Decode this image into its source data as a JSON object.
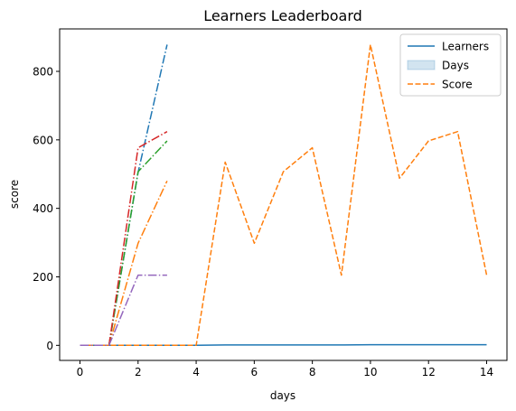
{
  "chart_data": {
    "type": "line",
    "title": "Learners Leaderboard",
    "xlabel": "days",
    "ylabel": "score",
    "xlim": [
      -0.7,
      14.7
    ],
    "ylim": [
      -44,
      924
    ],
    "xticks": [
      0,
      2,
      4,
      6,
      8,
      10,
      12,
      14
    ],
    "yticks": [
      0,
      200,
      400,
      600,
      800
    ],
    "grid": false,
    "legend": {
      "position": "top-right",
      "entries": [
        {
          "label": "Learners",
          "kind": "line",
          "color": "#1f77b4"
        },
        {
          "label": "Days",
          "kind": "patch",
          "color": "#1f77b4"
        },
        {
          "label": "Score",
          "kind": "dashed",
          "color": "#ff7f0e"
        }
      ]
    },
    "series": [
      {
        "name": "Learners",
        "color": "#1f77b4",
        "style": "solid",
        "x": [
          0,
          1,
          2,
          3,
          4,
          5,
          6,
          7,
          8,
          9,
          10,
          11,
          12,
          13,
          14
        ],
        "y": [
          0,
          0,
          0,
          0,
          0,
          1,
          1,
          1,
          1,
          1,
          2,
          2,
          2,
          2,
          2
        ]
      },
      {
        "name": "Score",
        "color": "#ff7f0e",
        "style": "dashed",
        "x": [
          0,
          1,
          2,
          3,
          4,
          5,
          6,
          7,
          8,
          9,
          10,
          11,
          12,
          13,
          14
        ],
        "y": [
          0,
          0,
          0,
          0,
          0,
          535,
          298,
          507,
          577,
          205,
          878,
          488,
          597,
          624,
          205
        ]
      },
      {
        "color": "#1f77b4",
        "style": "dashdot",
        "x": [
          0,
          1,
          2,
          3
        ],
        "y": [
          0,
          0,
          505,
          878
        ]
      },
      {
        "color": "#ff7f0e",
        "style": "dashdot",
        "x": [
          0,
          1,
          2,
          3
        ],
        "y": [
          0,
          0,
          298,
          480
        ]
      },
      {
        "color": "#2ca02c",
        "style": "dashdot",
        "x": [
          0,
          1,
          2,
          3
        ],
        "y": [
          0,
          0,
          507,
          597
        ]
      },
      {
        "color": "#d62728",
        "style": "dashdot",
        "x": [
          0,
          1,
          2,
          3
        ],
        "y": [
          0,
          0,
          577,
          624
        ]
      },
      {
        "color": "#9467bd",
        "style": "dashdot",
        "x": [
          0,
          1,
          2,
          3
        ],
        "y": [
          0,
          0,
          205,
          205
        ]
      }
    ]
  }
}
